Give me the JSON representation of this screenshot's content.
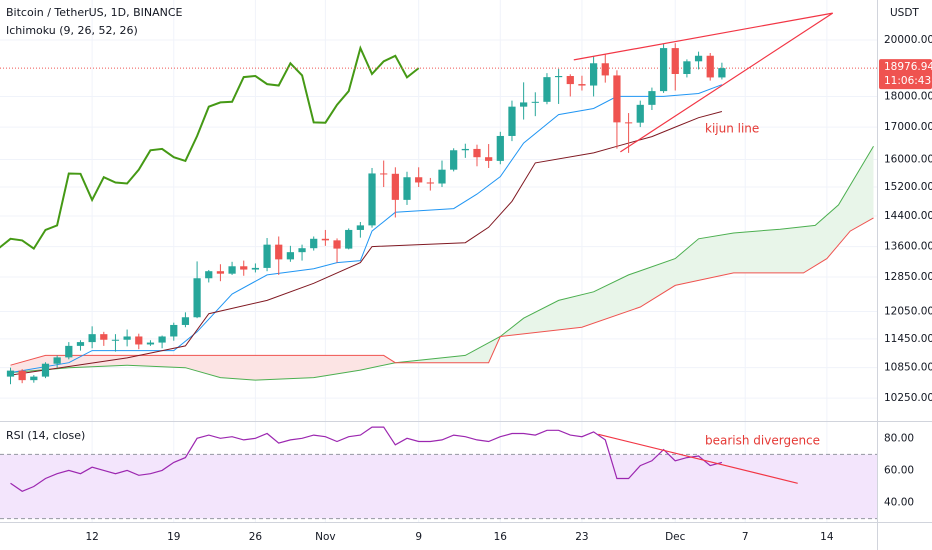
{
  "chart_data": [
    {
      "type": "candlestick",
      "title": "Bitcoin / TetherUS, 1D, BINANCE",
      "subtitle": "Ichimoku (9, 26, 52, 26)",
      "currency": "USDT",
      "log_scale": true,
      "grid": true,
      "xlim": [
        4.1,
        79.3
      ],
      "ylim": [
        9840,
        21550
      ],
      "yticks": [
        {
          "value": 20000,
          "label": "20000.00"
        },
        {
          "value": 18000,
          "label": "18000.00"
        },
        {
          "value": 17000,
          "label": "17000.00"
        },
        {
          "value": 16000,
          "label": "16000.00"
        },
        {
          "value": 15200,
          "label": "15200.00"
        },
        {
          "value": 14400,
          "label": "14400.00"
        },
        {
          "value": 13600,
          "label": "13600.00"
        },
        {
          "value": 12850,
          "label": "12850.00"
        },
        {
          "value": 12050,
          "label": "12050.00"
        },
        {
          "value": 11450,
          "label": "11450.00"
        },
        {
          "value": 10850,
          "label": "10850.00"
        },
        {
          "value": 10250,
          "label": "10250.00"
        }
      ],
      "up_color": "#26a69a",
      "down_color": "#ef5350",
      "x": [
        5,
        6,
        7,
        8,
        9,
        10,
        11,
        12,
        13,
        14,
        15,
        16,
        17,
        18,
        19,
        20,
        21,
        22,
        23,
        24,
        25,
        26,
        27,
        28,
        29,
        30,
        31,
        32,
        33,
        34,
        35,
        36,
        37,
        38,
        39,
        40,
        41,
        42,
        43,
        44,
        45,
        46,
        47,
        48,
        49,
        50,
        51,
        52,
        53,
        54,
        55,
        56,
        57,
        58,
        59,
        60,
        61,
        62,
        63,
        64,
        65,
        66
      ],
      "open": [
        10670,
        10790,
        10600,
        10670,
        10930,
        11060,
        11300,
        11380,
        11550,
        11430,
        11430,
        11500,
        11330,
        11370,
        11500,
        11750,
        11920,
        12820,
        12990,
        12930,
        13110,
        13030,
        13070,
        13650,
        13280,
        13460,
        13560,
        13800,
        13760,
        13550,
        14030,
        14150,
        15590,
        15580,
        14840,
        15480,
        15330,
        15300,
        15700,
        16280,
        16320,
        16070,
        15960,
        16720,
        17660,
        17800,
        17820,
        18660,
        18700,
        18420,
        18370,
        19150,
        18720,
        17150,
        17140,
        17720,
        18180,
        19700,
        18770,
        19220,
        19420,
        18650
      ],
      "high": [
        10850,
        10820,
        10700,
        10960,
        11100,
        11380,
        11420,
        11720,
        11600,
        11550,
        11650,
        11560,
        11420,
        11520,
        11800,
        12030,
        13230,
        13020,
        13160,
        13220,
        13250,
        13180,
        13820,
        13860,
        13620,
        13650,
        13860,
        14030,
        13810,
        14070,
        14240,
        15750,
        15970,
        15770,
        15640,
        15770,
        15460,
        15970,
        16340,
        16480,
        16450,
        16470,
        16850,
        17860,
        18480,
        18140,
        18800,
        18950,
        18760,
        18710,
        19410,
        19470,
        18900,
        17450,
        17860,
        18300,
        19850,
        19880,
        19290,
        19570,
        19520,
        19170
      ],
      "low": [
        10520,
        10540,
        10550,
        10640,
        10850,
        11020,
        11200,
        11250,
        11300,
        11180,
        11290,
        11230,
        11300,
        11250,
        11410,
        11700,
        11900,
        12720,
        12750,
        12900,
        12880,
        12960,
        12990,
        12900,
        13220,
        13250,
        13500,
        13620,
        13200,
        13530,
        13830,
        14090,
        15200,
        14360,
        14700,
        15200,
        15100,
        15200,
        15650,
        16050,
        15800,
        15750,
        15860,
        16560,
        17240,
        17350,
        17740,
        17750,
        18000,
        18200,
        18000,
        18470,
        16330,
        16200,
        17000,
        17550,
        18120,
        18200,
        18650,
        18930,
        18540,
        18580
      ],
      "close": [
        10790,
        10600,
        10670,
        10930,
        11060,
        11300,
        11380,
        11550,
        11430,
        11430,
        11500,
        11330,
        11370,
        11500,
        11750,
        11920,
        12820,
        12990,
        12930,
        13110,
        13030,
        13070,
        13650,
        13280,
        13460,
        13560,
        13800,
        13760,
        13550,
        14030,
        14150,
        15590,
        15580,
        14840,
        15480,
        15330,
        15300,
        15700,
        16280,
        16320,
        16070,
        15960,
        16720,
        17660,
        17800,
        17820,
        18660,
        18700,
        18420,
        18370,
        19150,
        18720,
        17150,
        17140,
        17720,
        18180,
        19700,
        18770,
        19220,
        19420,
        18650,
        18976.94
      ],
      "last_price": 18976.94,
      "countdown": "11:06:43",
      "price_line_color": "#ef5350",
      "overlays": [
        {
          "color": "#2196f3",
          "x": [
            5,
            10,
            12,
            19,
            21,
            24,
            27,
            31,
            33,
            35,
            36,
            38,
            43,
            45,
            47,
            49,
            52,
            55,
            57,
            61,
            64,
            66
          ],
          "values": [
            10750,
            10950,
            11200,
            11200,
            11600,
            12450,
            12900,
            13050,
            13200,
            13250,
            14000,
            14500,
            14600,
            15000,
            15500,
            16500,
            17400,
            17600,
            18000,
            18000,
            18100,
            18400
          ]
        },
        {
          "color": "#801922",
          "x": [
            5,
            15,
            20,
            22,
            27,
            31,
            35,
            36,
            44,
            46,
            48,
            50,
            55,
            57,
            60,
            62,
            64,
            66
          ],
          "values": [
            10700,
            11050,
            11300,
            12000,
            12300,
            12700,
            13200,
            13600,
            13700,
            14100,
            14800,
            15900,
            16200,
            16400,
            16700,
            17000,
            17300,
            17500
          ]
        },
        {
          "color": "#459915",
          "x": [
            4,
            5,
            6,
            7,
            8,
            9,
            10,
            11,
            12,
            13,
            14,
            15,
            16,
            17,
            18,
            19,
            20,
            21,
            22,
            23,
            24,
            25,
            26,
            27,
            28,
            29,
            30,
            31,
            32,
            33,
            34,
            35,
            36,
            37,
            38,
            39,
            40
          ],
          "values": [
            13560,
            13800,
            13760,
            13550,
            14030,
            14150,
            15590,
            15580,
            14840,
            15480,
            15330,
            15300,
            15700,
            16280,
            16320,
            16070,
            15960,
            16720,
            17660,
            17800,
            17820,
            18660,
            18700,
            18420,
            18370,
            19150,
            18720,
            17150,
            17140,
            17720,
            18180,
            19700,
            18770,
            19220,
            19420,
            18650,
            18976.94
          ]
        }
      ],
      "cloud": {
        "span_a": {
          "color": "#4caf50",
          "x": [
            5,
            10,
            15,
            20,
            23,
            26,
            31,
            35,
            38,
            44,
            47,
            49,
            52,
            55,
            58,
            62,
            64,
            67,
            71,
            74,
            76,
            79
          ],
          "values": [
            10750,
            10850,
            10900,
            10850,
            10650,
            10600,
            10650,
            10800,
            10950,
            11100,
            11500,
            11900,
            12300,
            12500,
            12900,
            13300,
            13800,
            13950,
            14050,
            14150,
            14700,
            16400
          ]
        },
        "span_b": {
          "color": "#ef5350",
          "x": [
            5,
            8,
            37,
            38,
            46,
            47,
            54,
            59,
            62,
            67,
            73,
            75,
            77,
            79
          ],
          "values": [
            10900,
            11100,
            11100,
            10950,
            10950,
            11500,
            11700,
            12150,
            12650,
            12950,
            12950,
            13300,
            14000,
            14350
          ]
        },
        "fill_up": "#e8f5e9",
        "fill_down": "#fce4e4"
      },
      "trendlines": [
        {
          "color": "#f23645",
          "x": [
            53.3,
            75.5
          ],
          "values": [
            19270,
            21030
          ]
        },
        {
          "color": "#f23645",
          "x": [
            57.3,
            75.5
          ],
          "values": [
            16230,
            21030
          ]
        }
      ],
      "annotations": [
        "kijun line"
      ]
    },
    {
      "type": "line",
      "title": "RSI (14, close)",
      "xlim": [
        4.1,
        79.3
      ],
      "ylim": [
        27.9,
        88.3
      ],
      "yticks": [
        {
          "value": 80,
          "label": "80.00"
        },
        {
          "value": 60,
          "label": "60.00"
        },
        {
          "value": 40,
          "label": "40.00"
        }
      ],
      "xticks": [
        12,
        19,
        26,
        {
          "value": 32,
          "label": "Nov"
        },
        {
          "value": 40,
          "label": "9"
        },
        {
          "value": 47,
          "label": "16"
        },
        {
          "value": 54,
          "label": "23"
        },
        {
          "value": 62,
          "label": "Dec"
        },
        {
          "value": 68,
          "label": "7"
        },
        {
          "value": 75,
          "label": "14"
        }
      ],
      "band": [
        30,
        70
      ],
      "band_color": "#f3e5fc",
      "series": [
        {
          "color": "#9c27b0",
          "x": [
            5,
            6,
            7,
            8,
            9,
            10,
            11,
            12,
            13,
            14,
            15,
            16,
            17,
            18,
            19,
            20,
            21,
            22,
            23,
            24,
            25,
            26,
            27,
            28,
            29,
            30,
            31,
            32,
            33,
            34,
            35,
            36,
            37,
            38,
            39,
            40,
            41,
            42,
            43,
            44,
            45,
            46,
            47,
            48,
            49,
            50,
            51,
            52,
            53,
            54,
            55,
            56,
            57,
            58,
            59,
            60,
            61,
            62,
            63,
            64,
            65,
            66
          ],
          "values": [
            52,
            47,
            50,
            55,
            58,
            60,
            58,
            62,
            60,
            58,
            60,
            57,
            58,
            60,
            65,
            68,
            80,
            82,
            80,
            81,
            79,
            80,
            83,
            77,
            79,
            80,
            82,
            81,
            78,
            81,
            82,
            87,
            87,
            76,
            80,
            78,
            78,
            79,
            82,
            81,
            79,
            78,
            81,
            83,
            83,
            82,
            85,
            85,
            82,
            81,
            84,
            79,
            55,
            55,
            63,
            66,
            73,
            66,
            68,
            69,
            63,
            65
          ]
        }
      ],
      "trendlines": [
        {
          "color": "#f23645",
          "x": [
            55.4,
            72.5
          ],
          "values": [
            82.5,
            52
          ]
        }
      ],
      "annotations": [
        "bearish divergence"
      ]
    }
  ]
}
